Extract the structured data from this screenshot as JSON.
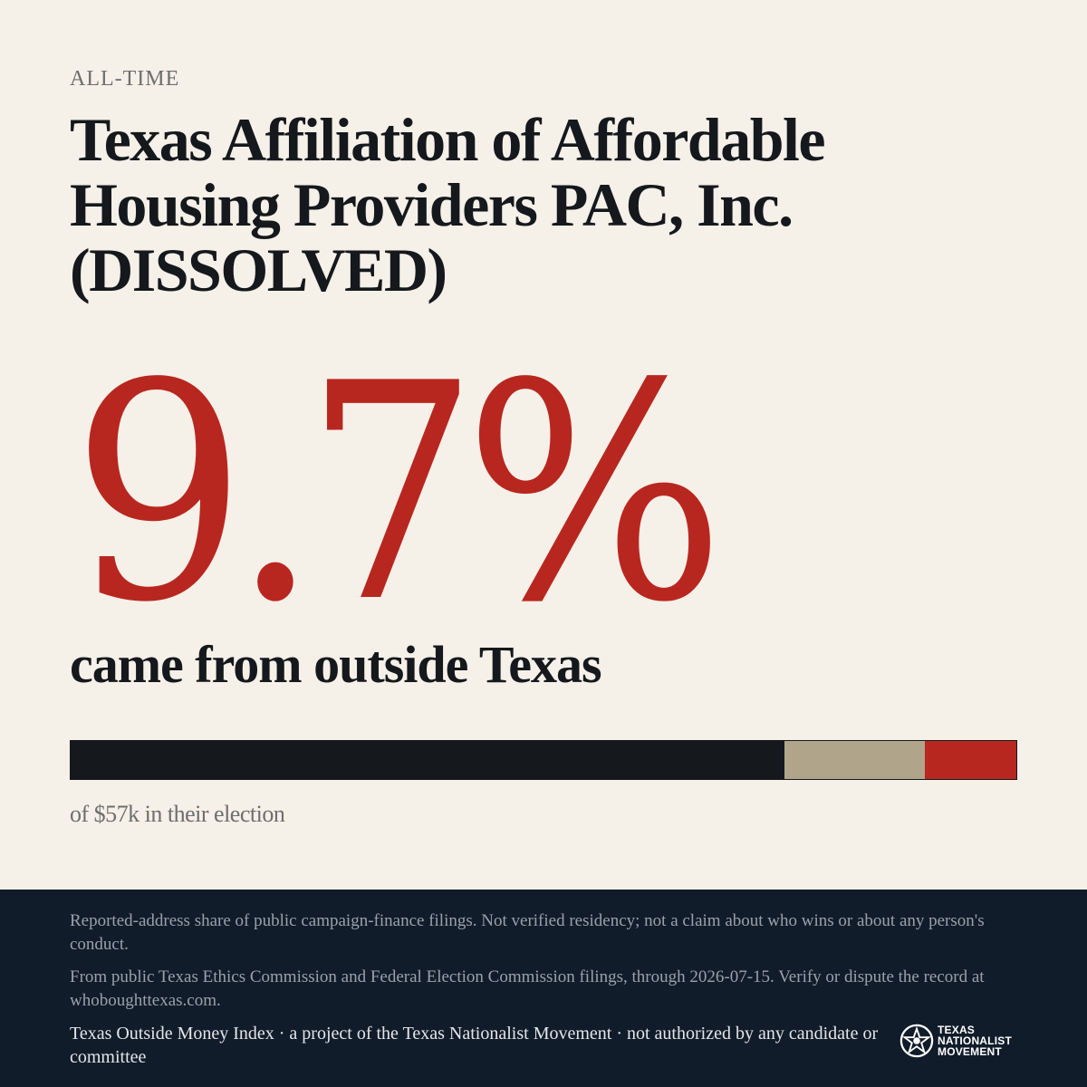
{
  "header": {
    "period": "ALL-TIME",
    "title": "Texas Affiliation of Affordable Housing Providers PAC, Inc. (DISSOLVED)"
  },
  "stat": {
    "percent_label": "9.7%",
    "caption": "came from outside Texas",
    "total_label": "of $57k in their election"
  },
  "bar_data": {
    "segments": [
      {
        "name": "texas",
        "fraction": 0.755,
        "color": "#15181c"
      },
      {
        "name": "unknown",
        "fraction": 0.148,
        "color": "#b0a58a"
      },
      {
        "name": "outside",
        "fraction": 0.097,
        "color": "#b8271f"
      }
    ]
  },
  "footer": {
    "note_1": "Reported-address share of public campaign-finance filings. Not verified residency; not a claim about who wins or about any person's conduct.",
    "note_2": "From public Texas Ethics Commission and Federal Election Commission filings, through 2026-07-15. Verify or dispute the record at whoboughttexas.com.",
    "credit": "Texas Outside Money Index · a project of the Texas Nationalist Movement · not authorized by any candidate or committee",
    "logo_lines": [
      "TEXAS",
      "NATIONALIST",
      "MOVEMENT"
    ]
  }
}
